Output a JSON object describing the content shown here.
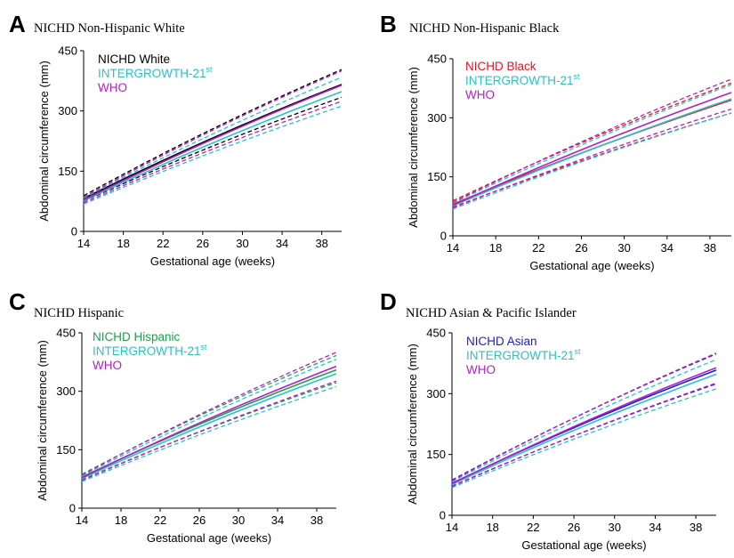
{
  "chart_data": [
    {
      "type": "line",
      "panel_label": "A",
      "title": "NICHD Non-Hispanic White",
      "xlabel": "Gestational age (weeks)",
      "ylabel": "Abdominal circumference (mm)",
      "xlim": [
        14,
        40
      ],
      "ylim": [
        0,
        450
      ],
      "xticks": [
        14,
        18,
        22,
        26,
        30,
        34,
        38
      ],
      "yticks": [
        0,
        150,
        300,
        450
      ],
      "legend_position": "top-left",
      "legend": [
        {
          "text": "NICHD White",
          "sup": "",
          "color": "#000000"
        },
        {
          "text": "INTERGROWTH-21",
          "sup": "st",
          "color": "#28c3c8"
        },
        {
          "text": "WHO",
          "sup": "",
          "color": "#b41ec8"
        }
      ],
      "x": [
        14,
        40
      ],
      "series": [
        {
          "name": "NICHD White",
          "style": "solid",
          "color": "#000000",
          "values": [
            82,
            366
          ]
        },
        {
          "name": "",
          "style": "dashed",
          "color": "#000000",
          "values": [
            89,
            403
          ]
        },
        {
          "name": "",
          "style": "dashed",
          "color": "#000000",
          "values": [
            75,
            334
          ]
        },
        {
          "name": "INTERGROWTH-21st",
          "style": "solid",
          "color": "#28c3c8",
          "values": [
            76,
            348
          ]
        },
        {
          "name": "",
          "style": "dashed",
          "color": "#28c3c8",
          "values": [
            83,
            384
          ]
        },
        {
          "name": "",
          "style": "dashed",
          "color": "#28c3c8",
          "values": [
            68,
            312
          ]
        },
        {
          "name": "WHO",
          "style": "solid",
          "color": "#b41ec8",
          "values": [
            78,
            364
          ]
        },
        {
          "name": "",
          "style": "dashed",
          "color": "#b41ec8",
          "values": [
            85,
            400
          ]
        },
        {
          "name": "",
          "style": "dashed",
          "color": "#b41ec8",
          "values": [
            71,
            324
          ]
        }
      ]
    },
    {
      "type": "line",
      "panel_label": "B",
      "title": "NICHD Non-Hispanic Black",
      "xlabel": "Gestational age (weeks)",
      "ylabel": "Abdominal circumference (mm)",
      "xlim": [
        14,
        40
      ],
      "ylim": [
        0,
        450
      ],
      "xticks": [
        14,
        18,
        22,
        26,
        30,
        34,
        38
      ],
      "yticks": [
        0,
        150,
        300,
        450
      ],
      "legend_position": "top-left",
      "legend": [
        {
          "text": "NICHD Black",
          "sup": "",
          "color": "#e8131c"
        },
        {
          "text": "INTERGROWTH-21",
          "sup": "st",
          "color": "#28c3c8"
        },
        {
          "text": "WHO",
          "sup": "",
          "color": "#b41ec8"
        }
      ],
      "x": [
        14,
        40
      ],
      "series": [
        {
          "name": "NICHD Black",
          "style": "solid",
          "color": "#e8131c",
          "values": [
            80,
            345
          ]
        },
        {
          "name": "",
          "style": "dashed",
          "color": "#e8131c",
          "values": [
            89,
            388
          ]
        },
        {
          "name": "",
          "style": "dashed",
          "color": "#e8131c",
          "values": [
            73,
            312
          ]
        },
        {
          "name": "INTERGROWTH-21st",
          "style": "solid",
          "color": "#28c3c8",
          "values": [
            76,
            348
          ]
        },
        {
          "name": "",
          "style": "dashed",
          "color": "#28c3c8",
          "values": [
            83,
            384
          ]
        },
        {
          "name": "",
          "style": "dashed",
          "color": "#28c3c8",
          "values": [
            68,
            312
          ]
        },
        {
          "name": "WHO",
          "style": "solid",
          "color": "#b41ec8",
          "values": [
            78,
            364
          ]
        },
        {
          "name": "",
          "style": "dashed",
          "color": "#b41ec8",
          "values": [
            85,
            398
          ]
        },
        {
          "name": "",
          "style": "dashed",
          "color": "#b41ec8",
          "values": [
            71,
            322
          ]
        }
      ]
    },
    {
      "type": "line",
      "panel_label": "C",
      "title": "NICHD Hispanic",
      "xlabel": "Gestational age (weeks)",
      "ylabel": "Abdominal circumference (mm)",
      "xlim": [
        14,
        40
      ],
      "ylim": [
        0,
        450
      ],
      "xticks": [
        14,
        18,
        22,
        26,
        30,
        34,
        38
      ],
      "yticks": [
        0,
        150,
        300,
        450
      ],
      "legend_position": "top-left",
      "legend": [
        {
          "text": "NICHD Hispanic",
          "sup": "",
          "color": "#1aa34a"
        },
        {
          "text": "INTERGROWTH-21",
          "sup": "st",
          "color": "#28c3c8"
        },
        {
          "text": "WHO",
          "sup": "",
          "color": "#b41ec8"
        }
      ],
      "x": [
        14,
        40
      ],
      "series": [
        {
          "name": "NICHD Hispanic",
          "style": "solid",
          "color": "#1aa34a",
          "values": [
            80,
            355
          ]
        },
        {
          "name": "",
          "style": "dashed",
          "color": "#1aa34a",
          "values": [
            87,
            392
          ]
        },
        {
          "name": "",
          "style": "dashed",
          "color": "#1aa34a",
          "values": [
            73,
            322
          ]
        },
        {
          "name": "INTERGROWTH-21st",
          "style": "solid",
          "color": "#28c3c8",
          "values": [
            76,
            345
          ]
        },
        {
          "name": "",
          "style": "dashed",
          "color": "#28c3c8",
          "values": [
            83,
            382
          ]
        },
        {
          "name": "",
          "style": "dashed",
          "color": "#28c3c8",
          "values": [
            68,
            312
          ]
        },
        {
          "name": "WHO",
          "style": "solid",
          "color": "#b41ec8",
          "values": [
            78,
            364
          ]
        },
        {
          "name": "",
          "style": "dashed",
          "color": "#b41ec8",
          "values": [
            85,
            400
          ]
        },
        {
          "name": "",
          "style": "dashed",
          "color": "#b41ec8",
          "values": [
            71,
            326
          ]
        }
      ]
    },
    {
      "type": "line",
      "panel_label": "D",
      "title": "NICHD Asian & Pacific Islander",
      "xlabel": "Gestational age (weeks)",
      "ylabel": "Abdominal circumference (mm)",
      "xlim": [
        14,
        40
      ],
      "ylim": [
        0,
        450
      ],
      "xticks": [
        14,
        18,
        22,
        26,
        30,
        34,
        38
      ],
      "yticks": [
        0,
        150,
        300,
        450
      ],
      "legend_position": "top-left",
      "legend": [
        {
          "text": "NICHD Asian",
          "sup": "",
          "color": "#1a1ae6"
        },
        {
          "text": "INTERGROWTH-21",
          "sup": "st",
          "color": "#28c3c8"
        },
        {
          "text": "WHO",
          "sup": "",
          "color": "#b41ec8"
        }
      ],
      "x": [
        14,
        40
      ],
      "series": [
        {
          "name": "NICHD Asian",
          "style": "solid",
          "color": "#1a1ae6",
          "values": [
            79,
            358
          ]
        },
        {
          "name": "",
          "style": "dashed",
          "color": "#1a1ae6",
          "values": [
            87,
            398
          ]
        },
        {
          "name": "",
          "style": "dashed",
          "color": "#1a1ae6",
          "values": [
            72,
            324
          ]
        },
        {
          "name": "INTERGROWTH-21st",
          "style": "solid",
          "color": "#28c3c8",
          "values": [
            76,
            348
          ]
        },
        {
          "name": "",
          "style": "dashed",
          "color": "#28c3c8",
          "values": [
            83,
            384
          ]
        },
        {
          "name": "",
          "style": "dashed",
          "color": "#28c3c8",
          "values": [
            68,
            312
          ]
        },
        {
          "name": "WHO",
          "style": "solid",
          "color": "#b41ec8",
          "values": [
            78,
            364
          ]
        },
        {
          "name": "",
          "style": "dashed",
          "color": "#b41ec8",
          "values": [
            85,
            400
          ]
        },
        {
          "name": "",
          "style": "dashed",
          "color": "#b41ec8",
          "values": [
            71,
            326
          ]
        }
      ]
    }
  ]
}
